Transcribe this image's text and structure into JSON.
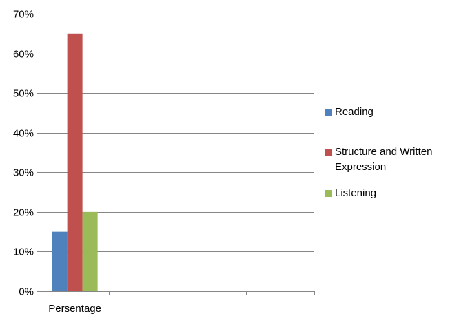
{
  "chart_data": {
    "type": "bar",
    "categories": [
      "Persentage"
    ],
    "series": [
      {
        "name": "Reading",
        "values": [
          15
        ],
        "color": "#4F81BD"
      },
      {
        "name": "Structure and Written Expression",
        "values": [
          65
        ],
        "color": "#C0504D"
      },
      {
        "name": "Listening",
        "values": [
          20
        ],
        "color": "#9BBB59"
      }
    ],
    "ylim": [
      0,
      70
    ],
    "yticks": [
      "0%",
      "10%",
      "20%",
      "30%",
      "40%",
      "50%",
      "60%",
      "70%"
    ],
    "grid": true,
    "legend_position": "right"
  }
}
